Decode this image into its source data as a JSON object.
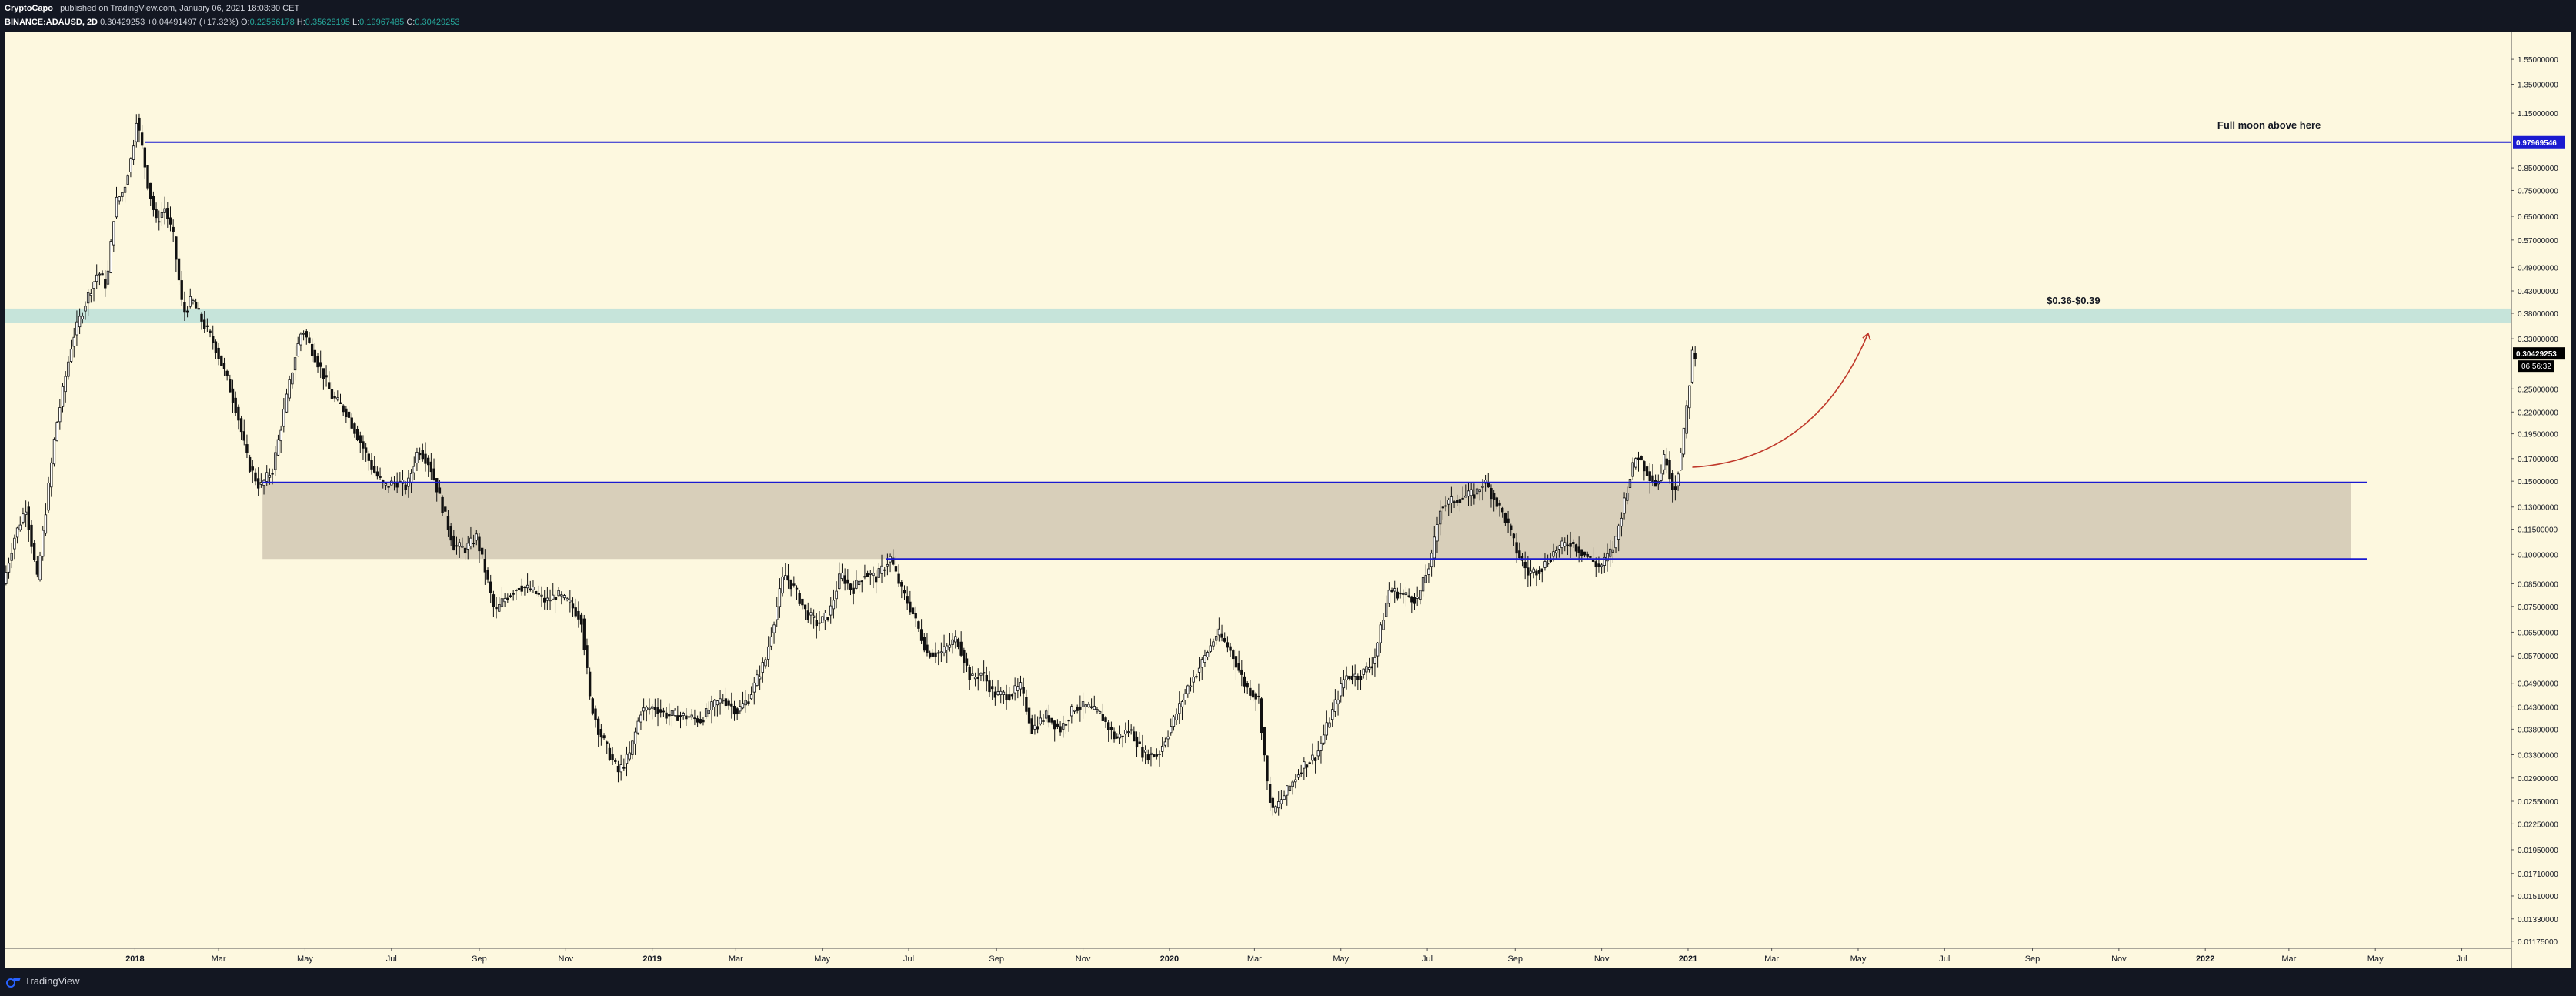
{
  "header": {
    "author": "CryptoCapo_",
    "published_text": "published on TradingView.com, January 06, 2021 18:03:30 CET",
    "symbol": "BINANCE:ADAUSD, 2D",
    "last": "0.30429253",
    "change": "+0.04491497 (+17.32%)",
    "o_label": "O:",
    "o_value": "0.22566178",
    "h_label": "H:",
    "h_value": "0.35628195",
    "l_label": "L:",
    "l_value": "0.19967485",
    "c_label": "C:",
    "c_value": "0.30429253"
  },
  "footer": {
    "brand": "TradingView"
  },
  "colors": {
    "background": "#fdf8df",
    "frame": "#131722",
    "level_line": "#1a1ad0",
    "zone_lower": "#d8cfba",
    "zone_upper": "#c6e4da",
    "arrow": "#c0392b",
    "price_badge": "#000000",
    "level_badge": "#1a1ad0"
  },
  "chart_data": {
    "type": "candlestick",
    "symbol": "ADAUSD",
    "interval": "2D",
    "scale": "log",
    "y_ticks": [
      "1.55000000",
      "1.35000000",
      "1.15000000",
      "0.97969546",
      "0.85000000",
      "0.75000000",
      "0.65000000",
      "0.57000000",
      "0.49000000",
      "0.43000000",
      "0.38000000",
      "0.33000000",
      "0.30429253",
      "0.25000000",
      "0.22000000",
      "0.19500000",
      "0.17000000",
      "0.15000000",
      "0.13000000",
      "0.11500000",
      "0.10000000",
      "0.08500000",
      "0.07500000",
      "0.06500000",
      "0.05700000",
      "0.04900000",
      "0.04300000",
      "0.03800000",
      "0.03300000",
      "0.02900000",
      "0.02550000",
      "0.02250000",
      "0.01950000",
      "0.01710000",
      "0.01510000",
      "0.01330000",
      "0.01175000"
    ],
    "x_ticks": [
      {
        "label": "2018",
        "date": "2018-01-01",
        "bold": true
      },
      {
        "label": "Mar",
        "date": "2018-03-01"
      },
      {
        "label": "May",
        "date": "2018-05-01"
      },
      {
        "label": "Jul",
        "date": "2018-07-01"
      },
      {
        "label": "Sep",
        "date": "2018-09-01"
      },
      {
        "label": "Nov",
        "date": "2018-11-01"
      },
      {
        "label": "2019",
        "date": "2019-01-01",
        "bold": true
      },
      {
        "label": "Mar",
        "date": "2019-03-01"
      },
      {
        "label": "May",
        "date": "2019-05-01"
      },
      {
        "label": "Jul",
        "date": "2019-07-01"
      },
      {
        "label": "Sep",
        "date": "2019-09-01"
      },
      {
        "label": "Nov",
        "date": "2019-11-01"
      },
      {
        "label": "2020",
        "date": "2020-01-01",
        "bold": true
      },
      {
        "label": "Mar",
        "date": "2020-03-01"
      },
      {
        "label": "May",
        "date": "2020-05-01"
      },
      {
        "label": "Jul",
        "date": "2020-07-01"
      },
      {
        "label": "Sep",
        "date": "2020-09-01"
      },
      {
        "label": "Nov",
        "date": "2020-11-01"
      },
      {
        "label": "2021",
        "date": "2021-01-01",
        "bold": true
      },
      {
        "label": "Mar",
        "date": "2021-03-01"
      },
      {
        "label": "May",
        "date": "2021-05-01"
      },
      {
        "label": "Jul",
        "date": "2021-07-01"
      },
      {
        "label": "Sep",
        "date": "2021-09-01"
      },
      {
        "label": "Nov",
        "date": "2021-11-01"
      },
      {
        "label": "2022",
        "date": "2022-01-01",
        "bold": true
      },
      {
        "label": "Mar",
        "date": "2022-03-01"
      },
      {
        "label": "May",
        "date": "2022-05-01"
      },
      {
        "label": "Jul",
        "date": "2022-07-01"
      }
    ],
    "y_range": [
      0.0113,
      1.8
    ],
    "x_range": [
      "2017-10-01",
      "2022-08-05"
    ],
    "price_points": [
      [
        "2017-10-02",
        0.085
      ],
      [
        "2017-10-10",
        0.11
      ],
      [
        "2017-10-18",
        0.13
      ],
      [
        "2017-10-26",
        0.087
      ],
      [
        "2017-11-08",
        0.2
      ],
      [
        "2017-11-20",
        0.33
      ],
      [
        "2017-12-01",
        0.42
      ],
      [
        "2017-12-08",
        0.48
      ],
      [
        "2017-12-14",
        0.44
      ],
      [
        "2017-12-20",
        0.7
      ],
      [
        "2017-12-26",
        0.75
      ],
      [
        "2018-01-01",
        0.92
      ],
      [
        "2018-01-04",
        1.12
      ],
      [
        "2018-01-08",
        0.95
      ],
      [
        "2018-01-12",
        0.78
      ],
      [
        "2018-01-18",
        0.63
      ],
      [
        "2018-01-24",
        0.68
      ],
      [
        "2018-01-30",
        0.58
      ],
      [
        "2018-02-06",
        0.38
      ],
      [
        "2018-02-12",
        0.41
      ],
      [
        "2018-02-20",
        0.36
      ],
      [
        "2018-02-28",
        0.32
      ],
      [
        "2018-03-08",
        0.27
      ],
      [
        "2018-03-16",
        0.22
      ],
      [
        "2018-03-24",
        0.165
      ],
      [
        "2018-04-01",
        0.145
      ],
      [
        "2018-04-10",
        0.16
      ],
      [
        "2018-04-18",
        0.22
      ],
      [
        "2018-04-26",
        0.3
      ],
      [
        "2018-05-01",
        0.35
      ],
      [
        "2018-05-06",
        0.32
      ],
      [
        "2018-05-14",
        0.28
      ],
      [
        "2018-05-22",
        0.24
      ],
      [
        "2018-06-01",
        0.22
      ],
      [
        "2018-06-10",
        0.19
      ],
      [
        "2018-06-20",
        0.16
      ],
      [
        "2018-06-28",
        0.145
      ],
      [
        "2018-07-06",
        0.15
      ],
      [
        "2018-07-14",
        0.145
      ],
      [
        "2018-07-22",
        0.18
      ],
      [
        "2018-07-30",
        0.165
      ],
      [
        "2018-08-08",
        0.13
      ],
      [
        "2018-08-16",
        0.105
      ],
      [
        "2018-08-24",
        0.103
      ],
      [
        "2018-09-01",
        0.11
      ],
      [
        "2018-09-08",
        0.089
      ],
      [
        "2018-09-14",
        0.072
      ],
      [
        "2018-09-20",
        0.078
      ],
      [
        "2018-10-01",
        0.084
      ],
      [
        "2018-10-10",
        0.082
      ],
      [
        "2018-10-20",
        0.077
      ],
      [
        "2018-10-28",
        0.08
      ],
      [
        "2018-11-06",
        0.076
      ],
      [
        "2018-11-14",
        0.07
      ],
      [
        "2018-11-20",
        0.045
      ],
      [
        "2018-11-26",
        0.038
      ],
      [
        "2018-12-04",
        0.033
      ],
      [
        "2018-12-10",
        0.03
      ],
      [
        "2018-12-18",
        0.033
      ],
      [
        "2018-12-26",
        0.042
      ],
      [
        "2019-01-04",
        0.043
      ],
      [
        "2019-01-14",
        0.041
      ],
      [
        "2019-01-24",
        0.041
      ],
      [
        "2019-02-06",
        0.04
      ],
      [
        "2019-02-14",
        0.043
      ],
      [
        "2019-02-22",
        0.045
      ],
      [
        "2019-03-04",
        0.042
      ],
      [
        "2019-03-12",
        0.045
      ],
      [
        "2019-03-24",
        0.056
      ],
      [
        "2019-04-01",
        0.075
      ],
      [
        "2019-04-06",
        0.09
      ],
      [
        "2019-04-14",
        0.082
      ],
      [
        "2019-04-22",
        0.072
      ],
      [
        "2019-04-30",
        0.068
      ],
      [
        "2019-05-08",
        0.072
      ],
      [
        "2019-05-16",
        0.09
      ],
      [
        "2019-05-24",
        0.082
      ],
      [
        "2019-06-02",
        0.09
      ],
      [
        "2019-06-10",
        0.088
      ],
      [
        "2019-06-20",
        0.098
      ],
      [
        "2019-06-28",
        0.082
      ],
      [
        "2019-07-06",
        0.072
      ],
      [
        "2019-07-16",
        0.058
      ],
      [
        "2019-07-26",
        0.058
      ],
      [
        "2019-08-06",
        0.063
      ],
      [
        "2019-08-16",
        0.05
      ],
      [
        "2019-08-24",
        0.052
      ],
      [
        "2019-09-01",
        0.046
      ],
      [
        "2019-09-12",
        0.046
      ],
      [
        "2019-09-20",
        0.048
      ],
      [
        "2019-09-28",
        0.038
      ],
      [
        "2019-10-08",
        0.041
      ],
      [
        "2019-10-18",
        0.038
      ],
      [
        "2019-10-28",
        0.043
      ],
      [
        "2019-11-06",
        0.043
      ],
      [
        "2019-11-16",
        0.041
      ],
      [
        "2019-11-26",
        0.036
      ],
      [
        "2019-12-06",
        0.038
      ],
      [
        "2019-12-16",
        0.033
      ],
      [
        "2019-12-26",
        0.033
      ],
      [
        "2020-01-06",
        0.04
      ],
      [
        "2020-01-16",
        0.048
      ],
      [
        "2020-01-26",
        0.055
      ],
      [
        "2020-02-06",
        0.065
      ],
      [
        "2020-02-16",
        0.058
      ],
      [
        "2020-02-26",
        0.048
      ],
      [
        "2020-03-06",
        0.045
      ],
      [
        "2020-03-12",
        0.028
      ],
      [
        "2020-03-16",
        0.024
      ],
      [
        "2020-03-26",
        0.027
      ],
      [
        "2020-04-06",
        0.031
      ],
      [
        "2020-04-16",
        0.033
      ],
      [
        "2020-04-26",
        0.041
      ],
      [
        "2020-05-06",
        0.051
      ],
      [
        "2020-05-16",
        0.051
      ],
      [
        "2020-05-26",
        0.055
      ],
      [
        "2020-06-06",
        0.082
      ],
      [
        "2020-06-16",
        0.08
      ],
      [
        "2020-06-26",
        0.078
      ],
      [
        "2020-07-06",
        0.098
      ],
      [
        "2020-07-12",
        0.13
      ],
      [
        "2020-07-22",
        0.135
      ],
      [
        "2020-07-30",
        0.138
      ],
      [
        "2020-08-06",
        0.14
      ],
      [
        "2020-08-12",
        0.15
      ],
      [
        "2020-08-20",
        0.135
      ],
      [
        "2020-08-28",
        0.12
      ],
      [
        "2020-09-04",
        0.102
      ],
      [
        "2020-09-12",
        0.09
      ],
      [
        "2020-09-22",
        0.093
      ],
      [
        "2020-10-02",
        0.103
      ],
      [
        "2020-10-12",
        0.107
      ],
      [
        "2020-10-22",
        0.1
      ],
      [
        "2020-11-02",
        0.093
      ],
      [
        "2020-11-12",
        0.105
      ],
      [
        "2020-11-22",
        0.15
      ],
      [
        "2020-11-28",
        0.175
      ],
      [
        "2020-12-04",
        0.16
      ],
      [
        "2020-12-12",
        0.146
      ],
      [
        "2020-12-18",
        0.175
      ],
      [
        "2020-12-24",
        0.14
      ],
      [
        "2020-12-30",
        0.182
      ],
      [
        "2021-01-04",
        0.2597
      ],
      [
        "2021-01-06",
        0.30429253
      ]
    ],
    "candle_interval_days": 2,
    "levels": [
      {
        "name": "top-level",
        "value": 0.97969546,
        "label": "0.97969546",
        "start": "2018-01-08",
        "end": "right-edge"
      },
      {
        "name": "box-top",
        "value": 0.149,
        "start": "2018-04-01",
        "end": "2022-04-25"
      },
      {
        "name": "box-bottom",
        "value": 0.0975,
        "start": "2019-06-15",
        "end": "2022-04-25"
      }
    ],
    "zones": [
      {
        "name": "demand-zone",
        "low": 0.0975,
        "high": 0.149,
        "start": "2018-04-01",
        "end": "2022-04-14"
      },
      {
        "name": "target-zone",
        "low": 0.36,
        "high": 0.39,
        "start": "2017-10-01",
        "end": "right-edge"
      }
    ],
    "annotations": [
      {
        "text": "Full moon above here",
        "date": "2022-02-15",
        "value": 1.03
      },
      {
        "text": "$0.36-$0.39",
        "date": "2021-09-30",
        "value": 0.39
      }
    ],
    "projection": {
      "from": [
        "2021-01-04",
        0.162
      ],
      "to": [
        "2021-05-08",
        0.34
      ]
    },
    "last_price_label": "0.30429253",
    "countdown_label": "06:56:32"
  }
}
